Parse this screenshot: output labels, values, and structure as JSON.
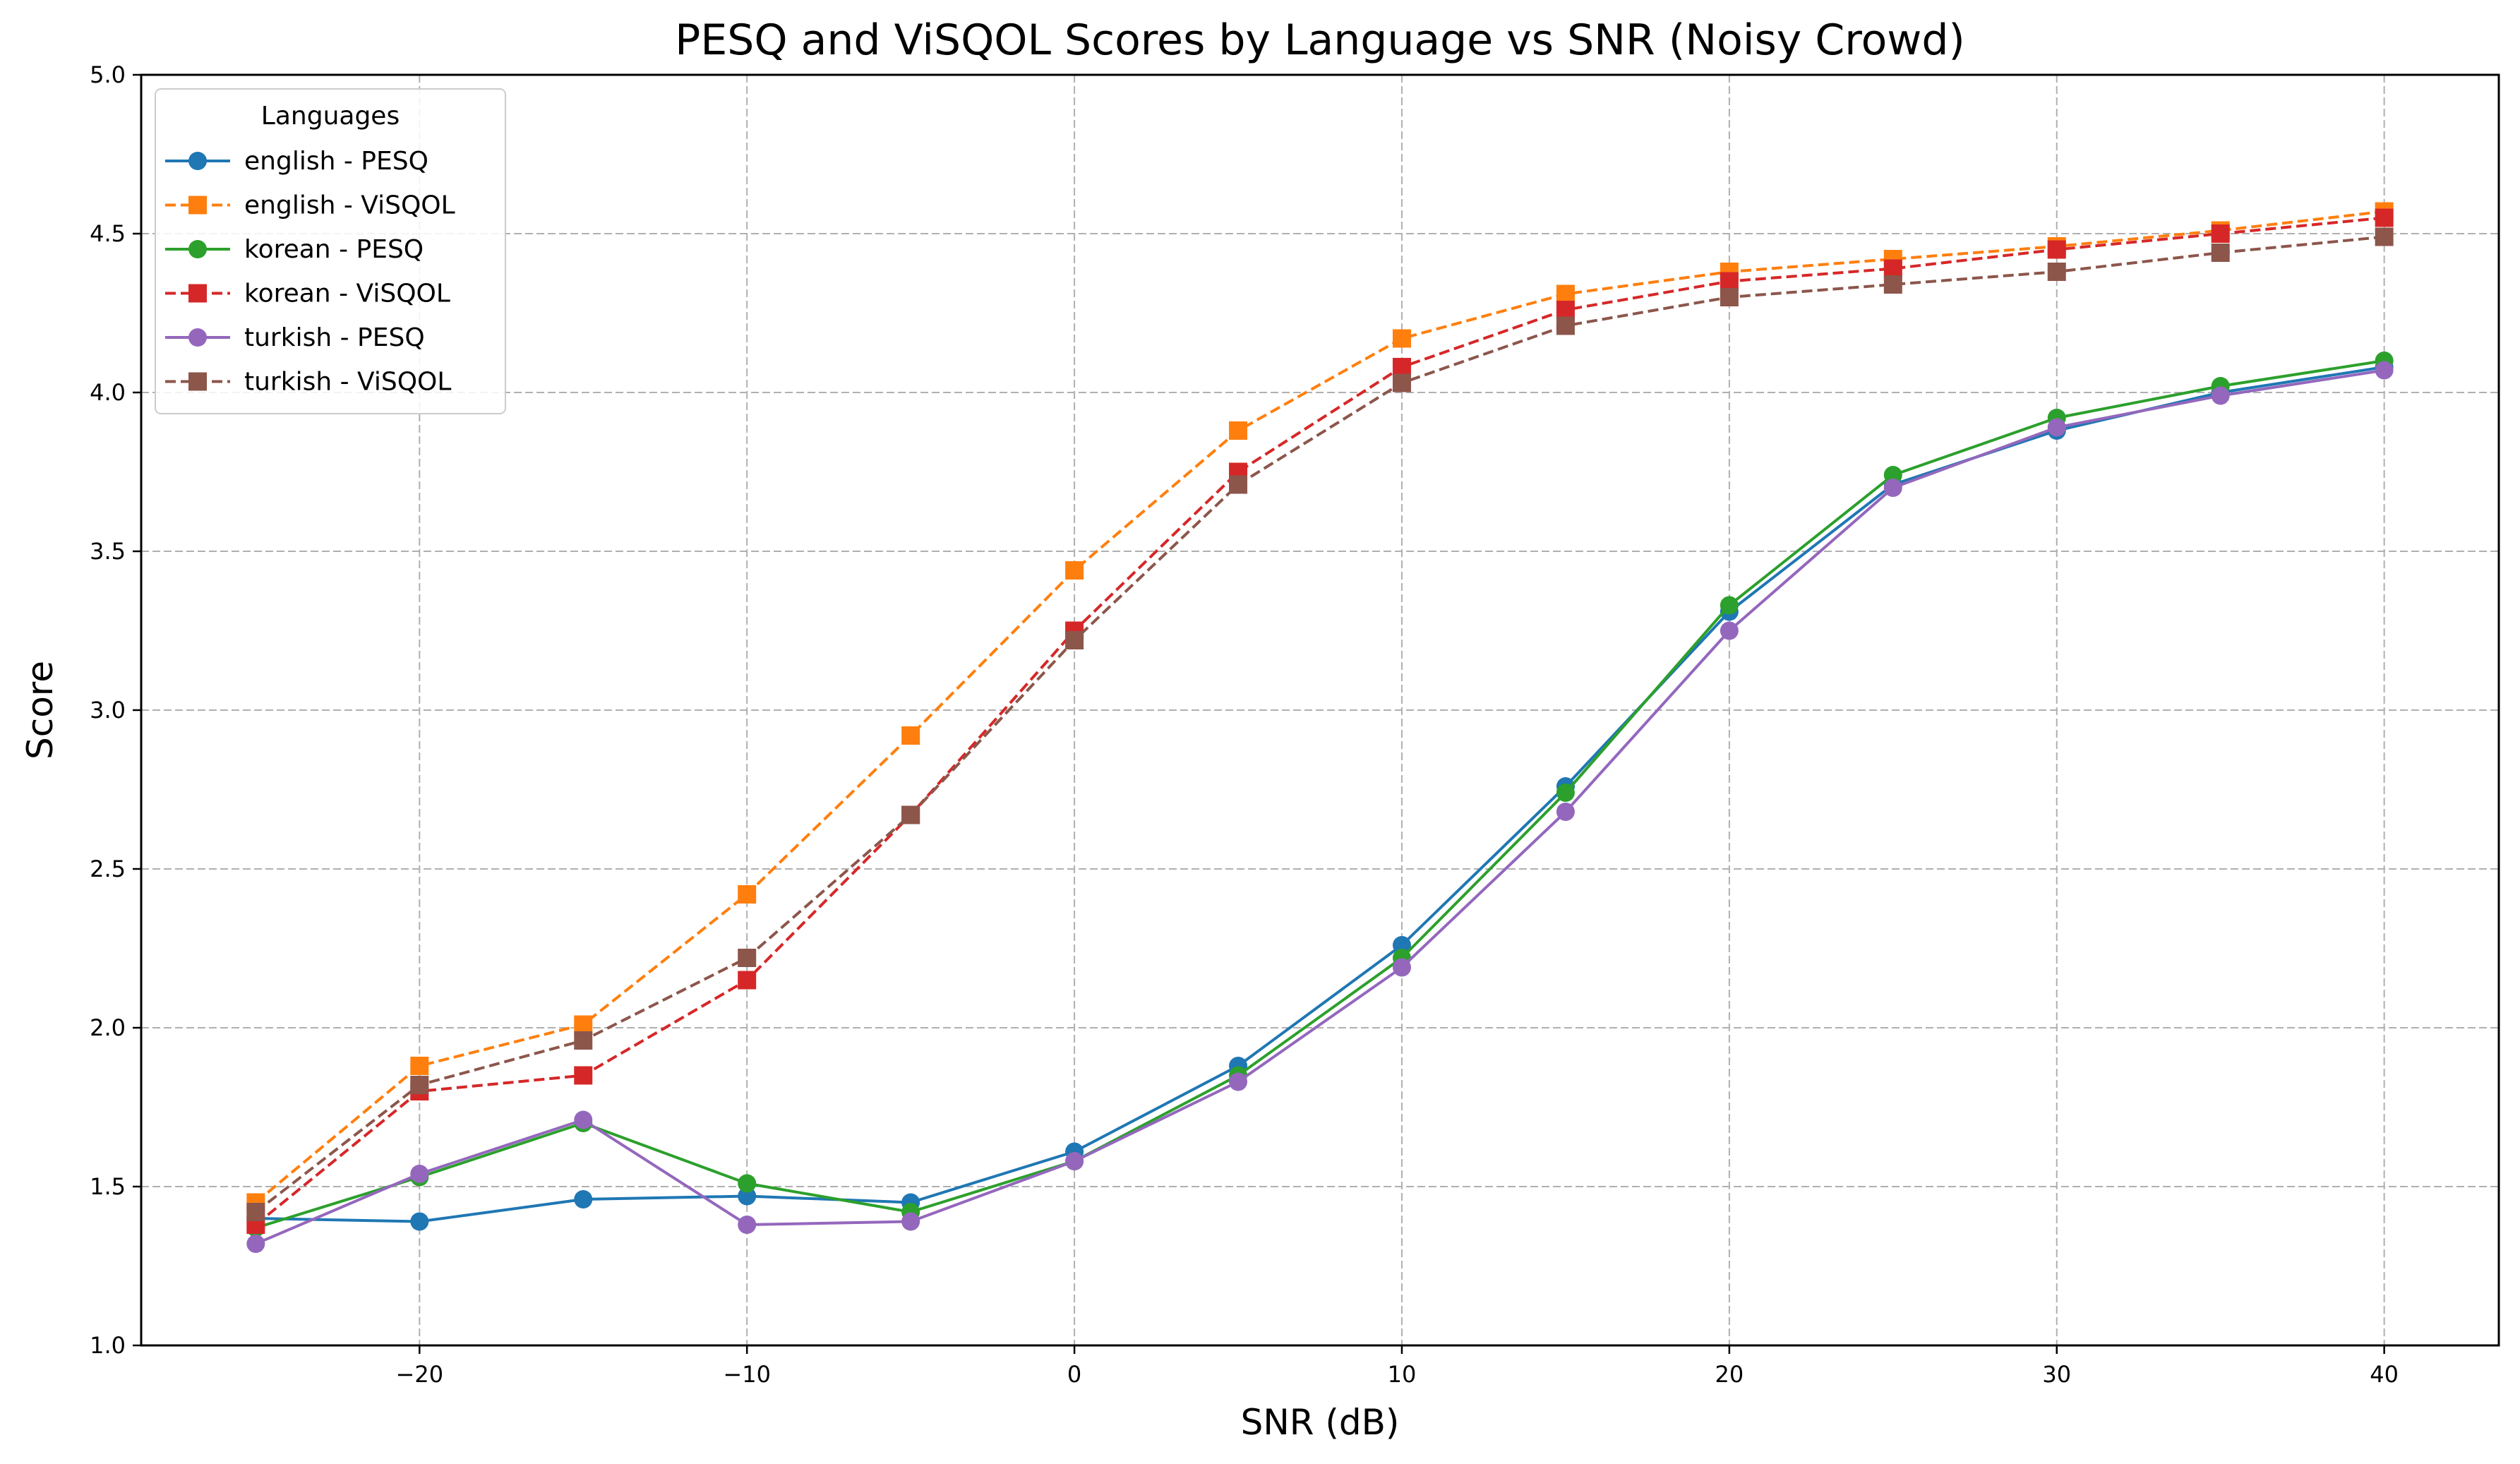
{
  "chart_data": {
    "type": "line",
    "title": "PESQ and ViSQOL Scores by Language vs SNR (Noisy Crowd)",
    "xlabel": "SNR (dB)",
    "ylabel": "Score",
    "xlim": [
      -28.5,
      43.5
    ],
    "ylim": [
      1.0,
      5.0
    ],
    "x_ticks": [
      -20,
      -10,
      0,
      10,
      20,
      30,
      40
    ],
    "x_tick_labels": [
      "−20",
      "−10",
      "0",
      "10",
      "20",
      "30",
      "40"
    ],
    "y_ticks": [
      1.0,
      1.5,
      2.0,
      2.5,
      3.0,
      3.5,
      4.0,
      4.5,
      5.0
    ],
    "y_tick_labels": [
      "1.0",
      "1.5",
      "2.0",
      "2.5",
      "3.0",
      "3.5",
      "4.0",
      "4.5",
      "5.0"
    ],
    "grid": true,
    "legend_title": "Languages",
    "legend_position": "top-left",
    "x": [
      -25,
      -20,
      -15,
      -10,
      -5,
      0,
      5,
      10,
      15,
      20,
      25,
      30,
      35,
      40
    ],
    "series": [
      {
        "name": "english - PESQ",
        "color": "#1f77b4",
        "marker": "circle",
        "linestyle": "solid",
        "values": [
          1.4,
          1.39,
          1.46,
          1.47,
          1.45,
          1.61,
          1.88,
          2.26,
          2.76,
          3.31,
          3.71,
          3.88,
          4.0,
          4.08
        ]
      },
      {
        "name": "english - ViSQOL",
        "color": "#ff7f0e",
        "marker": "square",
        "linestyle": "dashed",
        "values": [
          1.45,
          1.88,
          2.01,
          2.42,
          2.92,
          3.44,
          3.88,
          4.17,
          4.31,
          4.38,
          4.42,
          4.46,
          4.51,
          4.57
        ]
      },
      {
        "name": "korean - PESQ",
        "color": "#2ca02c",
        "marker": "circle",
        "linestyle": "solid",
        "values": [
          1.37,
          1.53,
          1.7,
          1.51,
          1.42,
          1.58,
          1.85,
          2.22,
          2.74,
          3.33,
          3.74,
          3.92,
          4.02,
          4.1
        ]
      },
      {
        "name": "korean - ViSQOL",
        "color": "#d62728",
        "marker": "square",
        "linestyle": "dashed",
        "values": [
          1.38,
          1.8,
          1.85,
          2.15,
          2.67,
          3.25,
          3.75,
          4.08,
          4.26,
          4.35,
          4.39,
          4.45,
          4.5,
          4.55
        ]
      },
      {
        "name": "turkish - PESQ",
        "color": "#9467bd",
        "marker": "circle",
        "linestyle": "solid",
        "values": [
          1.32,
          1.54,
          1.71,
          1.38,
          1.39,
          1.58,
          1.83,
          2.19,
          2.68,
          3.25,
          3.7,
          3.89,
          3.99,
          4.07
        ]
      },
      {
        "name": "turkish - ViSQOL",
        "color": "#8c564b",
        "marker": "square",
        "linestyle": "dashed",
        "values": [
          1.42,
          1.82,
          1.96,
          2.22,
          2.67,
          3.22,
          3.71,
          4.03,
          4.21,
          4.3,
          4.34,
          4.38,
          4.44,
          4.49
        ]
      }
    ]
  }
}
